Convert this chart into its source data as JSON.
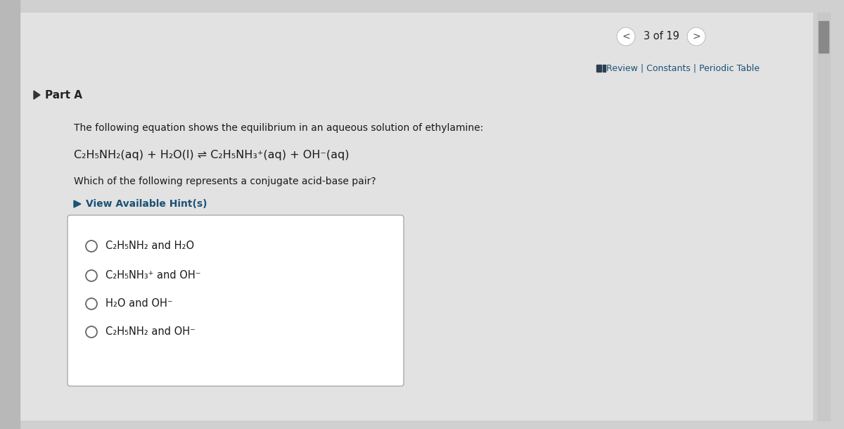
{
  "bg_color": "#d0d0d0",
  "panel_bg": "#e2e2e2",
  "page_nav": "3 of 19",
  "nav_links": "Review | Constants | Periodic Table",
  "part_label": "Part A",
  "description": "The following equation shows the equilibrium in an aqueous solution of ethylamine:",
  "equation": "C₂H₅NH₂(aq) + H₂O(l) ⇌ C₂H₅NH₃⁺(aq) + OH⁻(aq)",
  "question": "Which of the following represents a conjugate acid-base pair?",
  "hint_text": "View Available Hint(s)",
  "options": [
    "C₂H₅NH₂ and H₂O",
    "C₂H₅NH₃⁺ and OH⁻",
    "H₂O and OH⁻",
    "C₂H₅NH₂ and OH⁻"
  ],
  "link_color": "#1a5276",
  "hint_color": "#1a5276",
  "text_color": "#1a1a1a",
  "dark_color": "#222222",
  "nav_gray": "#555555",
  "scrollbar_track": "#c8c8c8",
  "scrollbar_thumb": "#888888",
  "left_strip_color": "#b8b8b8",
  "box_edge_color": "#aaaaaa",
  "circle_edge_color": "#666666"
}
